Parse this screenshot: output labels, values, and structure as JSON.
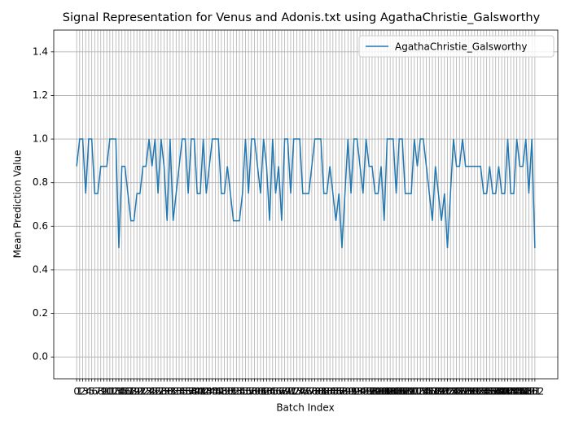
{
  "chart_data": {
    "type": "line",
    "title": "Signal Representation for Venus and Adonis.txt using AgathaChristie_Galsworthy",
    "xlabel": "Batch Index",
    "ylabel": "Mean Prediction Value",
    "x": [
      0,
      1,
      2,
      3,
      4,
      5,
      6,
      7,
      8,
      9,
      10,
      11,
      12,
      13,
      14,
      15,
      16,
      17,
      18,
      19,
      20,
      21,
      22,
      23,
      24,
      25,
      26,
      27,
      28,
      29,
      30,
      31,
      32,
      33,
      34,
      35,
      36,
      37,
      38,
      39,
      40,
      41,
      42,
      43,
      44,
      45,
      46,
      47,
      48,
      49,
      50,
      51,
      52,
      53,
      54,
      55,
      56,
      57,
      58,
      59,
      60,
      61,
      62,
      63,
      64,
      65,
      66,
      67,
      68,
      69,
      70,
      71,
      72,
      73,
      74,
      75,
      76,
      77,
      78,
      79,
      80,
      81,
      82,
      83,
      84,
      85,
      86,
      87,
      88,
      89,
      90,
      91,
      92,
      93,
      94,
      95,
      96,
      97,
      98,
      99,
      100,
      101,
      102,
      103,
      104,
      105,
      106,
      107,
      108,
      109,
      110,
      111,
      112,
      113,
      114,
      115,
      116,
      117,
      118,
      119,
      120,
      121,
      122,
      123,
      124,
      125,
      126,
      127,
      128,
      129,
      130,
      131,
      132,
      133,
      134,
      135,
      136,
      137,
      138,
      139,
      140,
      141,
      142,
      143,
      144,
      145,
      146,
      147,
      148,
      149,
      150,
      151,
      152
    ],
    "series": [
      {
        "name": "AgathaChristie_Galsworthy",
        "color": "#1f77b4",
        "values": [
          0.875,
          1,
          1,
          0.75,
          1,
          1,
          0.75,
          0.75,
          0.875,
          0.875,
          0.875,
          1,
          1,
          1,
          0.5,
          0.875,
          0.875,
          0.75,
          0.625,
          0.625,
          0.75,
          0.75,
          0.875,
          0.875,
          1,
          0.875,
          1,
          0.75,
          1,
          0.875,
          0.625,
          1,
          0.625,
          0.75,
          0.875,
          1,
          1,
          0.75,
          1,
          1,
          0.75,
          0.75,
          1,
          0.75,
          0.875,
          1,
          1,
          1,
          0.75,
          0.75,
          0.875,
          0.75,
          0.625,
          0.625,
          0.625,
          0.75,
          1,
          0.75,
          1,
          1,
          0.875,
          0.75,
          1,
          0.875,
          0.625,
          1,
          0.75,
          0.875,
          0.625,
          1,
          1,
          0.75,
          1,
          1,
          1,
          0.75,
          0.75,
          0.75,
          0.875,
          1,
          1,
          1,
          0.75,
          0.75,
          0.875,
          0.75,
          0.625,
          0.75,
          0.5,
          0.75,
          1,
          0.75,
          1,
          1,
          0.875,
          0.75,
          1,
          0.875,
          0.875,
          0.75,
          0.75,
          0.875,
          0.625,
          1,
          1,
          1,
          0.75,
          1,
          1,
          0.75,
          0.75,
          0.75,
          1,
          0.875,
          1,
          1,
          0.875,
          0.75,
          0.625,
          0.875,
          0.75,
          0.625,
          0.75,
          0.5,
          0.75,
          1,
          0.875,
          0.875,
          1,
          0.875,
          0.875,
          0.875,
          0.875,
          0.875,
          0.875,
          0.75,
          0.75,
          0.875,
          0.75,
          0.75,
          0.875,
          0.75,
          0.75,
          1,
          0.75,
          0.75,
          1,
          0.875,
          0.875,
          1,
          0.75,
          1,
          0.5
        ]
      }
    ],
    "xlim": [
      -7.6,
      159.6
    ],
    "xticks": [
      0,
      1,
      2,
      3,
      4,
      5,
      6,
      7,
      8,
      9,
      10,
      11,
      12,
      13,
      14,
      15,
      16,
      17,
      18,
      19,
      20,
      21,
      22,
      23,
      24,
      25,
      26,
      27,
      28,
      29,
      30,
      31,
      32,
      33,
      34,
      35,
      36,
      37,
      38,
      39,
      40,
      41,
      42,
      43,
      44,
      45,
      46,
      47,
      48,
      49,
      50,
      51,
      52,
      53,
      54,
      55,
      56,
      57,
      58,
      59,
      60,
      61,
      62,
      63,
      64,
      65,
      66,
      67,
      68,
      69,
      70,
      71,
      72,
      73,
      74,
      75,
      76,
      77,
      78,
      79,
      80,
      81,
      82,
      83,
      84,
      85,
      86,
      87,
      88,
      89,
      90,
      91,
      92,
      93,
      94,
      95,
      96,
      97,
      98,
      99,
      100,
      101,
      102,
      103,
      104,
      105,
      106,
      107,
      108,
      109,
      110,
      111,
      112,
      113,
      114,
      115,
      116,
      117,
      118,
      119,
      120,
      121,
      122,
      123,
      124,
      125,
      126,
      127,
      128,
      129,
      130,
      131,
      132,
      133,
      134,
      135,
      136,
      137,
      138,
      139,
      140,
      141,
      142,
      143,
      144,
      145,
      146,
      147,
      148,
      149,
      150,
      151,
      152
    ],
    "ylim": [
      -0.1,
      1.5
    ],
    "yticks": [
      {
        "value": 0,
        "label": "0.0"
      },
      0.2,
      0.4,
      0.6,
      0.8,
      {
        "value": 1,
        "label": "1.0"
      },
      1.2,
      1.4
    ],
    "grid": true,
    "legend": "upper right"
  }
}
